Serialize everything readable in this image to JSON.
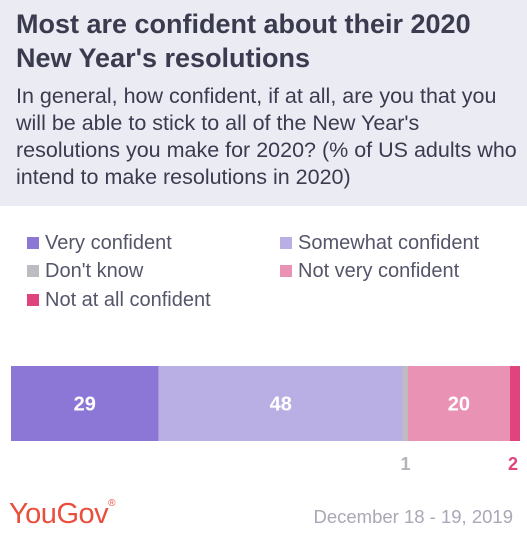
{
  "title": "Most are confident about their 2020 New Year's resolutions",
  "subtitle": "In general, how confident, if at all, are you that you will be able to stick to all of the New Year's resolutions you make for 2020? (% of US adults who intend to make resolutions in 2020)",
  "brand": "YouGov",
  "date": "December 18 - 19, 2019",
  "chart_data": {
    "type": "bar",
    "orientation": "horizontal-stacked",
    "series": [
      {
        "name": "Very confident",
        "value": 29,
        "color": "#8c76d6",
        "label_position": "inside",
        "label_color": "#ffffff"
      },
      {
        "name": "Somewhat confident",
        "value": 48,
        "color": "#b9afe4",
        "label_position": "inside",
        "label_color": "#ffffff"
      },
      {
        "name": "Don't know",
        "value": 1,
        "color": "#bdbdc1",
        "label_position": "below",
        "label_color": "#b3b3b9"
      },
      {
        "name": "Not very confident",
        "value": 20,
        "color": "#e992b4",
        "label_position": "inside",
        "label_color": "#ffffff"
      },
      {
        "name": "Not at all confident",
        "value": 2,
        "color": "#e0447f",
        "label_position": "below",
        "label_color": "#e0447f"
      }
    ],
    "legend_placement": "top",
    "grid": false
  }
}
